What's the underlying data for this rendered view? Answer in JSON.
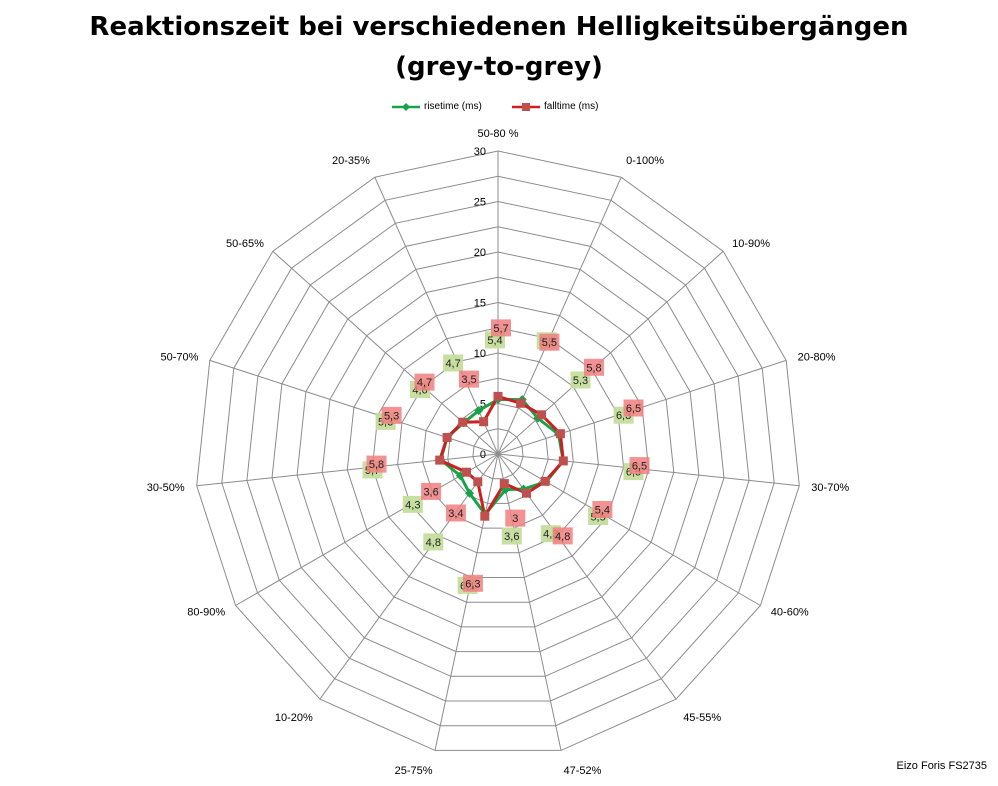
{
  "title_line1": "Reaktionszeit bei verschiedenen Helligkeitsübergängen",
  "title_line2": "(grey-to-grey)",
  "footnote": "Eizo Foris FS2735",
  "colors": {
    "risetime": "#18a24a",
    "falltime": "#cc1f1f",
    "rise_label_bg": "#c4de9c",
    "fall_label_bg": "#f07f7f",
    "grid": "#8c8c8c"
  },
  "chart_data": {
    "type": "radar",
    "categories": [
      "50-80 %",
      "0-100%",
      "10-90%",
      "20-80%",
      "30-70%",
      "40-60%",
      "45-55%",
      "47-52%",
      "25-75%",
      "10-20%",
      "80-90%",
      "30-50%",
      "50-70%",
      "50-65%",
      "20-35%"
    ],
    "radial_ticks": [
      "0",
      "5",
      "10",
      "15",
      "20",
      "25",
      "30"
    ],
    "rmax": 30,
    "legend_position": "top",
    "series": [
      {
        "name": "risetime (ms)",
        "values": [
          5.4,
          5.9,
          5.3,
          6.3,
          6.5,
          5.5,
          4.3,
          3.6,
          6.1,
          4.8,
          4.3,
          5.7,
          5.3,
          4.6,
          4.7
        ],
        "labels": [
          "5,4",
          "5,9",
          "5,3",
          "6,3",
          "6,5",
          "5,5",
          "4,3",
          "3,6",
          "6,1",
          "4,8",
          "4,3",
          "5,7",
          "5,3",
          "4,6",
          "4,7"
        ]
      },
      {
        "name": "falltime (ms)",
        "values": [
          5.7,
          5.5,
          5.8,
          6.5,
          6.5,
          5.4,
          4.8,
          3.0,
          6.3,
          3.4,
          3.6,
          5.8,
          5.3,
          4.7,
          3.5
        ],
        "labels": [
          "5,7",
          "5,5",
          "5,8",
          "6,5",
          "6,5",
          "5,4",
          "4,8",
          "3",
          "6,3",
          "3,4",
          "3,6",
          "5,8",
          "5,3",
          "4,7",
          "3,5"
        ]
      }
    ]
  }
}
